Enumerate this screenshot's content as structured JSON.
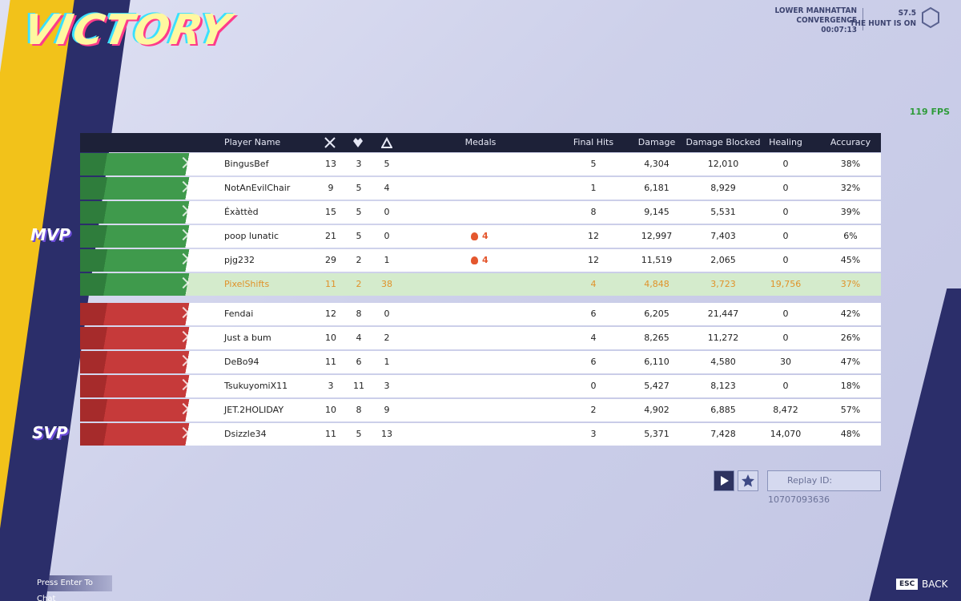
{
  "header": {
    "title": "VICTORY",
    "map_line1": "LOWER MANHATTAN",
    "map_line2": "CONVERGENCE",
    "time": "00:07:13",
    "season": "S7.5",
    "season_name": "THE HUNT IS ON",
    "fps": "119 FPS"
  },
  "table": {
    "columns": {
      "player_name": "Player Name",
      "medals": "Medals",
      "final_hits": "Final Hits",
      "damage": "Damage",
      "damage_blocked": "Damage Blocked",
      "healing": "Healing",
      "accuracy": "Accuracy"
    },
    "allies": [
      {
        "name": "BingusBef",
        "k": "13",
        "d": "3",
        "a": "5",
        "final_hits": "5",
        "damage": "4,304",
        "blocked": "12,010",
        "healing": "0",
        "accuracy": "38%"
      },
      {
        "name": "NotAnEvilChair",
        "k": "9",
        "d": "5",
        "a": "4",
        "final_hits": "1",
        "damage": "6,181",
        "blocked": "8,929",
        "healing": "0",
        "accuracy": "32%"
      },
      {
        "name": "Éxàttèd",
        "k": "15",
        "d": "5",
        "a": "0",
        "final_hits": "8",
        "damage": "9,145",
        "blocked": "5,531",
        "healing": "0",
        "accuracy": "39%"
      },
      {
        "name": "poop lunatic",
        "k": "21",
        "d": "5",
        "a": "0",
        "medal": "4",
        "final_hits": "12",
        "damage": "12,997",
        "blocked": "7,403",
        "healing": "0",
        "accuracy": "6%"
      },
      {
        "name": "pjg232",
        "k": "29",
        "d": "2",
        "a": "1",
        "medal": "4",
        "final_hits": "12",
        "damage": "11,519",
        "blocked": "2,065",
        "healing": "0",
        "accuracy": "45%"
      },
      {
        "name": "PixelShifts",
        "k": "11",
        "d": "2",
        "a": "38",
        "final_hits": "4",
        "damage": "4,848",
        "blocked": "3,723",
        "healing": "19,756",
        "accuracy": "37%",
        "highlight": true
      }
    ],
    "enemies": [
      {
        "name": "Fendai",
        "k": "12",
        "d": "8",
        "a": "0",
        "final_hits": "6",
        "damage": "6,205",
        "blocked": "21,447",
        "healing": "0",
        "accuracy": "42%"
      },
      {
        "name": "Just a bum",
        "k": "10",
        "d": "4",
        "a": "2",
        "final_hits": "4",
        "damage": "8,265",
        "blocked": "11,272",
        "healing": "0",
        "accuracy": "26%"
      },
      {
        "name": "DeBo94",
        "k": "11",
        "d": "6",
        "a": "1",
        "final_hits": "6",
        "damage": "6,110",
        "blocked": "4,580",
        "healing": "30",
        "accuracy": "47%"
      },
      {
        "name": "TsukuyomiX11",
        "k": "3",
        "d": "11",
        "a": "3",
        "final_hits": "0",
        "damage": "5,427",
        "blocked": "8,123",
        "healing": "0",
        "accuracy": "18%"
      },
      {
        "name": "JET.2HOLIDAY",
        "k": "10",
        "d": "8",
        "a": "9",
        "final_hits": "2",
        "damage": "4,902",
        "blocked": "6,885",
        "healing": "8,472",
        "accuracy": "57%"
      },
      {
        "name": "Dsizzle34",
        "k": "11",
        "d": "5",
        "a": "13",
        "final_hits": "3",
        "damage": "5,371",
        "blocked": "7,428",
        "healing": "14,070",
        "accuracy": "48%"
      }
    ]
  },
  "badges": {
    "mvp": "MVP",
    "svp": "SVP"
  },
  "footer": {
    "replay": "Replay ID: 10707093636",
    "chat": "Press Enter To Chat",
    "esc": "ESC",
    "back": "BACK"
  }
}
